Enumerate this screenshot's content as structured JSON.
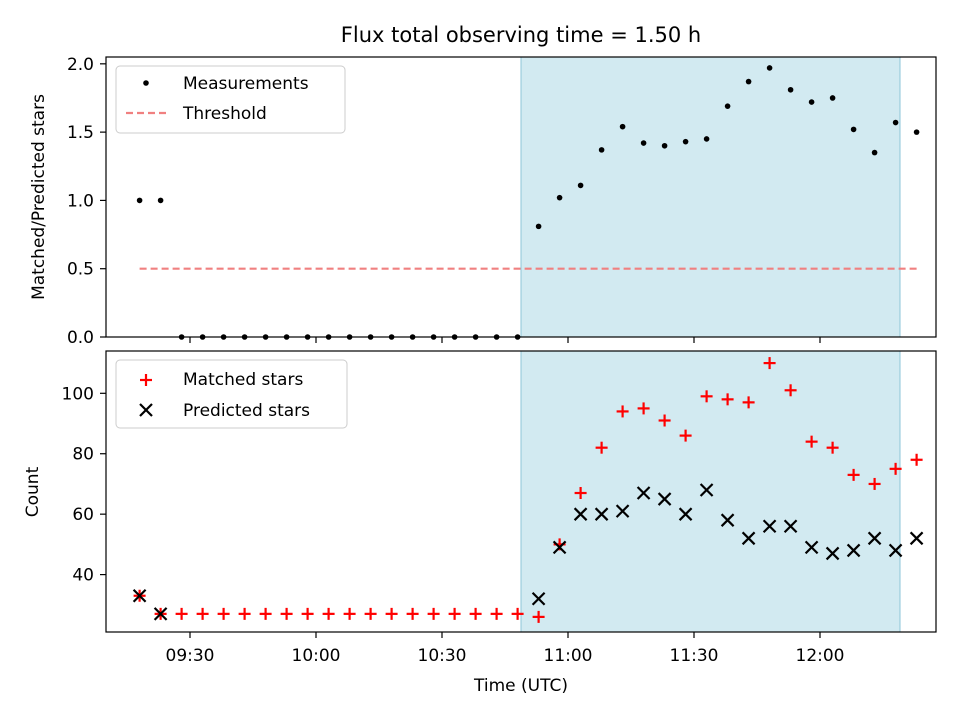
{
  "chart_data": [
    {
      "type": "scatter",
      "title": "Flux total observing time = 1.50 h",
      "ylabel": "Matched/Predicted stars",
      "xlabel": "",
      "ylim": [
        0,
        2.05
      ],
      "yticks": [
        "0.0",
        "0.5",
        "1.0",
        "1.5",
        "2.0"
      ],
      "grid": false,
      "legend": "upper-left",
      "shaded_span": {
        "from": "10:53",
        "to": "12:23",
        "color": "#add8e6"
      },
      "x": [
        "09:18",
        "09:23",
        "09:28",
        "09:33",
        "09:38",
        "09:43",
        "09:48",
        "09:53",
        "09:58",
        "10:03",
        "10:08",
        "10:13",
        "10:18",
        "10:23",
        "10:28",
        "10:33",
        "10:38",
        "10:43",
        "10:48",
        "10:53",
        "10:58",
        "11:03",
        "11:08",
        "11:13",
        "11:18",
        "11:23",
        "11:28",
        "11:33",
        "11:38",
        "11:43",
        "11:48",
        "11:53",
        "11:58",
        "12:03",
        "12:08",
        "12:13",
        "12:18",
        "12:23"
      ],
      "series": [
        {
          "name": "Measurements",
          "marker": "point",
          "color": "#000000",
          "values": [
            1.0,
            1.0,
            0,
            0,
            0,
            0,
            0,
            0,
            0,
            0,
            0,
            0,
            0,
            0,
            0,
            0,
            0,
            0,
            0,
            0.81,
            1.02,
            1.11,
            1.37,
            1.54,
            1.42,
            1.4,
            1.43,
            1.45,
            1.69,
            1.87,
            1.97,
            1.81,
            1.72,
            1.75,
            1.52,
            1.35,
            1.57,
            1.5
          ]
        },
        {
          "name": "Threshold",
          "style": "dashed-line",
          "color": "#f08080",
          "x": [
            "09:18",
            "12:23"
          ],
          "values": [
            0.5,
            0.5
          ]
        }
      ]
    },
    {
      "type": "scatter",
      "title": "",
      "ylabel": "Count",
      "xlabel": "Time (UTC)",
      "ylim": [
        21,
        114
      ],
      "yticks": [
        "40",
        "60",
        "80",
        "100"
      ],
      "xticks": [
        "09:30",
        "10:00",
        "10:30",
        "11:00",
        "11:30",
        "12:00"
      ],
      "grid": false,
      "legend": "upper-left",
      "shaded_span": {
        "from": "10:53",
        "to": "12:23",
        "color": "#add8e6"
      },
      "x": [
        "09:18",
        "09:23",
        "09:28",
        "09:33",
        "09:38",
        "09:43",
        "09:48",
        "09:53",
        "09:58",
        "10:03",
        "10:08",
        "10:13",
        "10:18",
        "10:23",
        "10:28",
        "10:33",
        "10:38",
        "10:43",
        "10:48",
        "10:53",
        "10:58",
        "11:03",
        "11:08",
        "11:13",
        "11:18",
        "11:23",
        "11:28",
        "11:33",
        "11:38",
        "11:43",
        "11:48",
        "11:53",
        "11:58",
        "12:03",
        "12:08",
        "12:13",
        "12:18",
        "12:23"
      ],
      "series": [
        {
          "name": "Matched stars",
          "marker": "plus",
          "color": "#ff0000",
          "values": [
            33,
            27,
            27,
            27,
            27,
            27,
            27,
            27,
            27,
            27,
            27,
            27,
            27,
            27,
            27,
            27,
            27,
            27,
            27,
            26,
            50,
            67,
            82,
            94,
            95,
            91,
            86,
            99,
            98,
            97,
            110,
            101,
            84,
            82,
            73,
            70,
            75,
            78
          ]
        },
        {
          "name": "Predicted stars",
          "marker": "x",
          "color": "#000000",
          "values": [
            33,
            27,
            null,
            null,
            null,
            null,
            null,
            null,
            null,
            null,
            null,
            null,
            null,
            null,
            null,
            null,
            null,
            null,
            null,
            32,
            49,
            60,
            60,
            61,
            67,
            65,
            60,
            68,
            58,
            52,
            56,
            56,
            49,
            47,
            48,
            52,
            48,
            52
          ]
        }
      ]
    }
  ]
}
